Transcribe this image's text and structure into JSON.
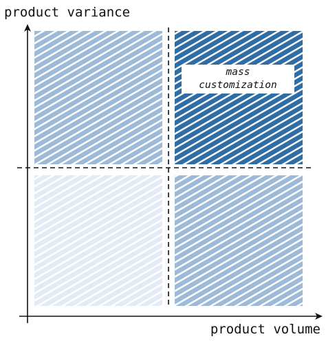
{
  "axes": {
    "x_label": "product volume",
    "y_label": "product variance"
  },
  "quadrants": {
    "top_left": {
      "label": "",
      "color": "#9dbbd9"
    },
    "top_right": {
      "label": "mass customization",
      "label_lines": [
        "mass",
        "customization"
      ],
      "color": "#2f6da6"
    },
    "bottom_left": {
      "label": "",
      "color": "#e3ecf5"
    },
    "bottom_right": {
      "label": "",
      "color": "#9dbbd9"
    }
  },
  "colors": {
    "axis": "#111111",
    "divider": "#111111",
    "label_background": "#ffffff"
  }
}
